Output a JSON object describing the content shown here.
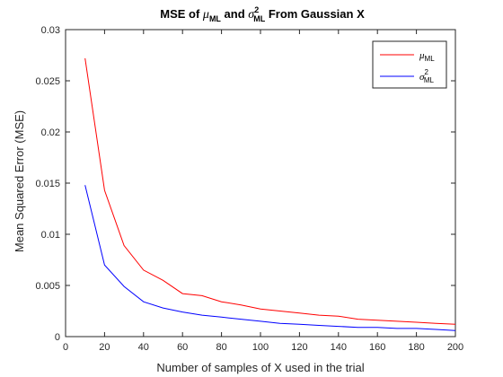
{
  "chart_data": {
    "type": "line",
    "title": {
      "prefix": "MSE of ",
      "mu_symbol": "μ",
      "mu_sub": "ML",
      "middle": " and ",
      "sigma_symbol": "σ",
      "sigma_sup": "2",
      "sigma_sub": "ML",
      "suffix": "  From Gaussian X"
    },
    "xlabel": "Number of samples of X used in the trial",
    "ylabel": "Mean Squared Error (MSE)",
    "xlim": [
      0,
      200
    ],
    "ylim": [
      0,
      0.03
    ],
    "xticks": [
      0,
      20,
      40,
      60,
      80,
      100,
      120,
      140,
      160,
      180,
      200
    ],
    "yticks": [
      0,
      0.005,
      0.01,
      0.015,
      0.02,
      0.025,
      0.03
    ],
    "ytick_labels": [
      "0",
      "0.005",
      "0.01",
      "0.015",
      "0.02",
      "0.025",
      "0.03"
    ],
    "grid": false,
    "legend_position": "top-right",
    "x": [
      10,
      20,
      30,
      40,
      50,
      60,
      70,
      80,
      90,
      100,
      110,
      120,
      130,
      140,
      150,
      160,
      170,
      180,
      190,
      200
    ],
    "series": [
      {
        "symbol": "μ",
        "sub": "ML",
        "sup": "",
        "color": "#ff0000",
        "values": [
          0.0272,
          0.0143,
          0.0089,
          0.0065,
          0.0055,
          0.0042,
          0.004,
          0.0034,
          0.0031,
          0.0027,
          0.0025,
          0.0023,
          0.0021,
          0.002,
          0.0017,
          0.0016,
          0.0015,
          0.0014,
          0.0013,
          0.0012
        ]
      },
      {
        "symbol": "σ",
        "sub": "ML",
        "sup": "2",
        "color": "#0000ff",
        "values": [
          0.0148,
          0.007,
          0.0049,
          0.0034,
          0.0028,
          0.0024,
          0.0021,
          0.0019,
          0.0017,
          0.0015,
          0.0013,
          0.0012,
          0.0011,
          0.001,
          0.0009,
          0.0009,
          0.0008,
          0.0008,
          0.0007,
          0.0006
        ]
      }
    ]
  }
}
